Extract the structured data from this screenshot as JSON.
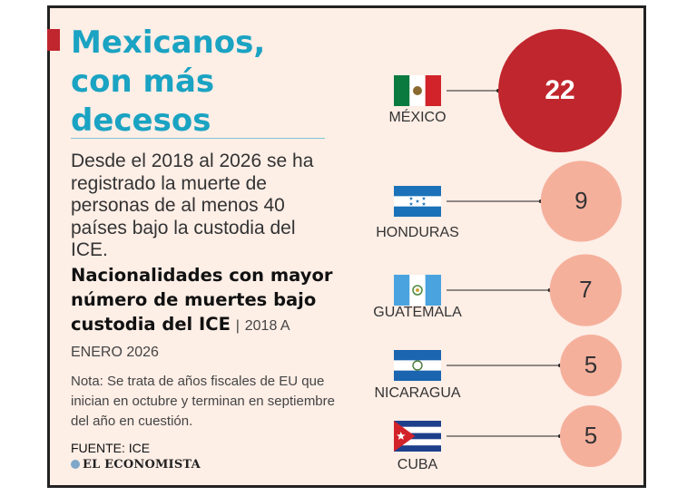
{
  "header": {
    "title_lines": [
      "Mexicanos,",
      "con más",
      "decesos"
    ],
    "description": "Desde el 2018 al 2026 se ha registrado la muerte de personas de al menos 40 países bajo la custodia del ICE.",
    "subtitle_bold": "Nacionalidades con mayor número de muertes bajo custodia del ICE",
    "subtitle_sep": "|",
    "subtitle_range": "2018 A ENERO 2026"
  },
  "footer": {
    "note": "Nota: Se trata de años fiscales de EU que inician en octubre y terminan en septiembre del año en cuestión.",
    "source": "FUENTE: ICE",
    "logo_text": "EL ECONOMISTA"
  },
  "colors": {
    "accent": "#c0262d",
    "title": "#1aa3c2",
    "bubble_light": "#f5b09c",
    "bubble_dark": "#c0262d",
    "background": "#fdeee6"
  },
  "chart_data": {
    "type": "bubble",
    "categories": [
      "MÉXICO",
      "HONDURAS",
      "GUATEMALA",
      "NICARAGUA",
      "CUBA"
    ],
    "values": [
      22,
      9,
      7,
      5,
      5
    ],
    "flags": [
      "mexico-flag-icon",
      "honduras-flag-icon",
      "guatemala-flag-icon",
      "nicaragua-flag-icon",
      "cuba-flag-icon"
    ]
  }
}
